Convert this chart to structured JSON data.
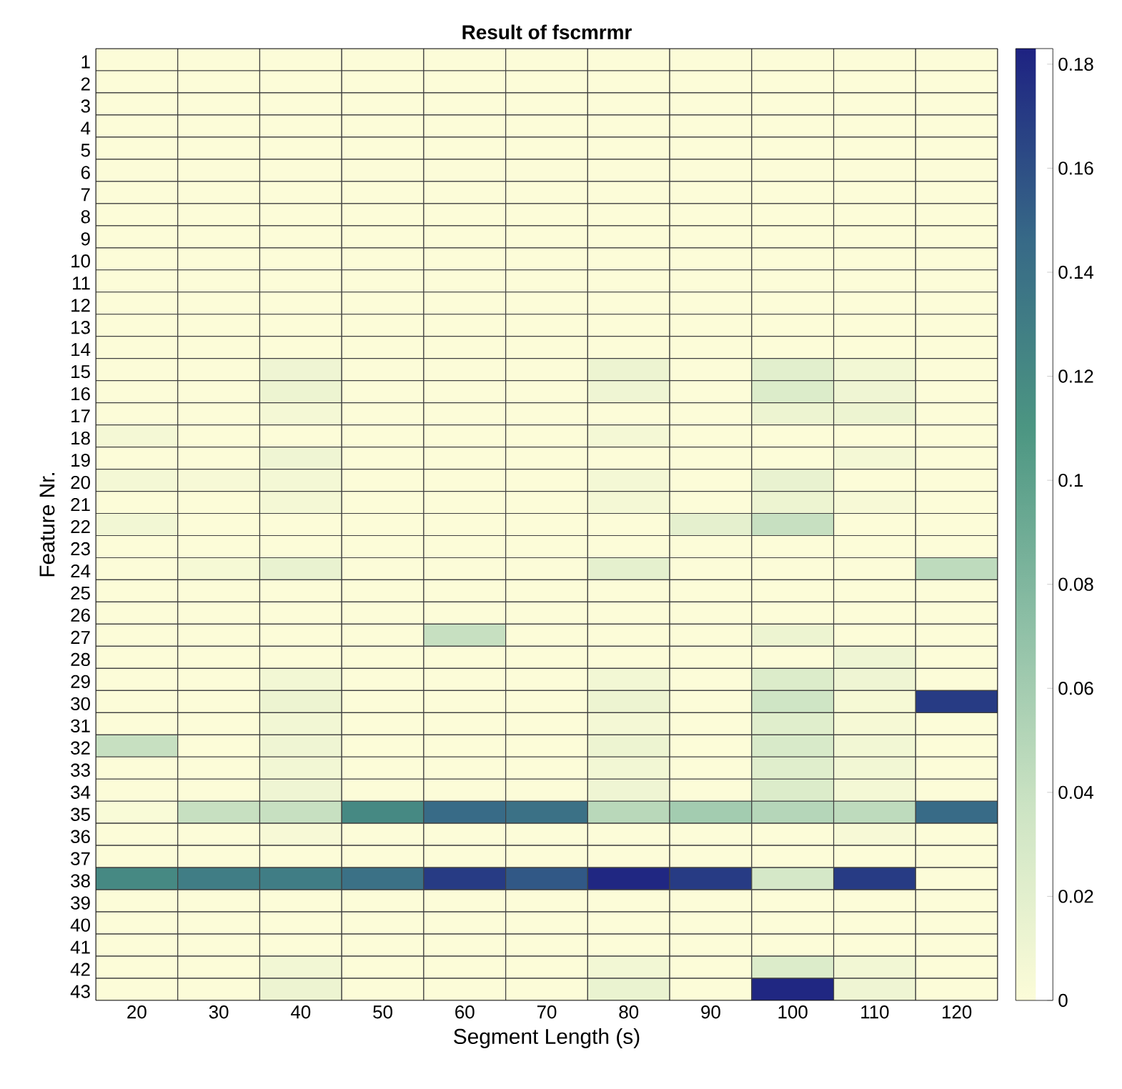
{
  "chart_data": {
    "type": "heatmap",
    "title": "Result of fscmrmr",
    "xlabel": "Segment Length (s)",
    "ylabel": "Feature Nr.",
    "categories": [
      "20",
      "30",
      "40",
      "50",
      "60",
      "70",
      "80",
      "90",
      "100",
      "110",
      "120"
    ],
    "y_categories": [
      "1",
      "2",
      "3",
      "4",
      "5",
      "6",
      "7",
      "8",
      "9",
      "10",
      "11",
      "12",
      "13",
      "14",
      "15",
      "16",
      "17",
      "18",
      "19",
      "20",
      "21",
      "22",
      "23",
      "24",
      "25",
      "26",
      "27",
      "28",
      "29",
      "30",
      "31",
      "32",
      "33",
      "34",
      "35",
      "36",
      "37",
      "38",
      "39",
      "40",
      "41",
      "42",
      "43"
    ],
    "cells": [
      [
        0,
        0,
        0,
        0,
        0,
        0,
        0,
        0,
        0,
        0,
        0
      ],
      [
        0,
        0,
        0,
        0,
        0,
        0,
        0,
        0,
        0,
        0,
        0
      ],
      [
        0,
        0,
        0,
        0,
        0,
        0,
        0,
        0,
        0,
        0,
        0
      ],
      [
        0,
        0,
        0,
        0,
        0,
        0,
        0,
        0,
        0,
        0,
        0
      ],
      [
        0,
        0,
        0,
        0,
        0,
        0,
        0,
        0,
        0,
        0,
        0
      ],
      [
        0,
        0,
        0,
        0,
        0,
        0,
        0,
        0,
        0,
        0,
        0
      ],
      [
        0,
        0,
        0,
        0,
        0,
        0,
        0,
        0,
        0,
        0,
        0
      ],
      [
        0,
        0,
        0,
        0,
        0,
        0,
        0,
        0,
        0,
        0,
        0
      ],
      [
        0,
        0,
        0,
        0,
        0,
        0,
        0,
        0,
        0,
        0,
        0
      ],
      [
        0,
        0,
        0,
        0,
        0,
        0,
        0,
        0,
        0,
        0,
        0
      ],
      [
        0,
        0,
        0,
        0,
        0,
        0,
        0,
        0,
        0,
        0,
        0
      ],
      [
        0,
        0,
        0,
        0,
        0,
        0,
        0,
        0,
        0,
        0,
        0
      ],
      [
        0,
        0,
        0,
        0,
        0,
        0,
        0,
        0,
        0,
        0,
        0
      ],
      [
        0,
        0,
        0,
        0,
        0,
        0,
        0,
        0,
        0,
        0,
        0
      ],
      [
        0,
        0,
        0.01,
        0,
        0,
        0,
        0.012,
        0,
        0.02,
        0.008,
        0
      ],
      [
        0,
        0,
        0.012,
        0,
        0,
        0,
        0.01,
        0,
        0.025,
        0.01,
        0
      ],
      [
        0,
        0,
        0.006,
        0,
        0,
        0,
        0,
        0,
        0.012,
        0.012,
        0
      ],
      [
        0.006,
        0,
        0,
        0,
        0,
        0,
        0.006,
        0,
        0,
        0,
        0
      ],
      [
        0,
        0,
        0.01,
        0,
        0,
        0,
        0,
        0,
        0,
        0.006,
        0
      ],
      [
        0.006,
        0.004,
        0.006,
        0,
        0,
        0,
        0.006,
        0,
        0.015,
        0,
        0
      ],
      [
        0,
        0,
        0.006,
        0,
        0,
        0,
        0.006,
        0,
        0.012,
        0.004,
        0
      ],
      [
        0.008,
        0,
        0,
        0,
        0,
        0,
        0,
        0.018,
        0.04,
        0,
        0
      ],
      [
        0,
        0,
        0,
        0,
        0,
        0,
        0,
        0,
        0,
        0,
        0
      ],
      [
        0,
        0.005,
        0.015,
        0,
        0,
        0,
        0.018,
        0,
        0,
        0,
        0.045
      ],
      [
        0,
        0,
        0,
        0,
        0,
        0,
        0,
        0,
        0,
        0,
        0
      ],
      [
        0,
        0,
        0,
        0,
        0,
        0,
        0,
        0,
        0,
        0,
        0
      ],
      [
        0,
        0,
        0,
        0,
        0.04,
        0,
        0,
        0,
        0.012,
        0,
        0
      ],
      [
        0,
        0,
        0,
        0,
        0,
        0,
        0,
        0,
        0,
        0.01,
        0
      ],
      [
        0,
        0,
        0.008,
        0,
        0,
        0,
        0.008,
        0,
        0.025,
        0.01,
        0
      ],
      [
        0,
        0,
        0.012,
        0,
        0,
        0,
        0.012,
        0,
        0.035,
        0.005,
        0.17
      ],
      [
        0,
        0,
        0.008,
        0,
        0,
        0,
        0.006,
        0,
        0.022,
        0.005,
        0
      ],
      [
        0.04,
        0,
        0.01,
        0,
        0,
        0,
        0.012,
        0,
        0.028,
        0.008,
        0
      ],
      [
        0,
        0,
        0.008,
        0,
        0,
        0,
        0.008,
        0,
        0.022,
        0.008,
        0
      ],
      [
        0,
        0,
        0.01,
        0,
        0,
        0,
        0.01,
        0,
        0.025,
        0.006,
        0
      ],
      [
        0.002,
        0.04,
        0.04,
        0.12,
        0.145,
        0.14,
        0.048,
        0.06,
        0.05,
        0.045,
        0.145
      ],
      [
        0,
        0,
        0.004,
        0,
        0,
        0,
        0,
        0,
        0,
        0.004,
        0
      ],
      [
        0,
        0,
        0,
        0,
        0,
        0,
        0,
        0,
        0,
        0,
        0
      ],
      [
        0.12,
        0.13,
        0.13,
        0.14,
        0.17,
        0.155,
        0.18,
        0.17,
        0.03,
        0.17,
        0
      ],
      [
        0,
        0,
        0,
        0,
        0,
        0,
        0,
        0,
        0,
        0,
        0
      ],
      [
        0,
        0,
        0,
        0,
        0,
        0,
        0,
        0,
        0,
        0,
        0
      ],
      [
        0,
        0,
        0,
        0,
        0,
        0,
        0,
        0,
        0,
        0,
        0
      ],
      [
        0,
        0,
        0.008,
        0,
        0,
        0,
        0.008,
        0,
        0.025,
        0.008,
        0
      ],
      [
        0,
        0,
        0.012,
        0,
        0,
        0,
        0.014,
        0,
        0.18,
        0.01,
        0
      ]
    ],
    "clim": [
      0,
      0.183
    ],
    "cticks": [
      0,
      0.02,
      0.04,
      0.06,
      0.08,
      0.1,
      0.12,
      0.14,
      0.16,
      0.18
    ]
  }
}
